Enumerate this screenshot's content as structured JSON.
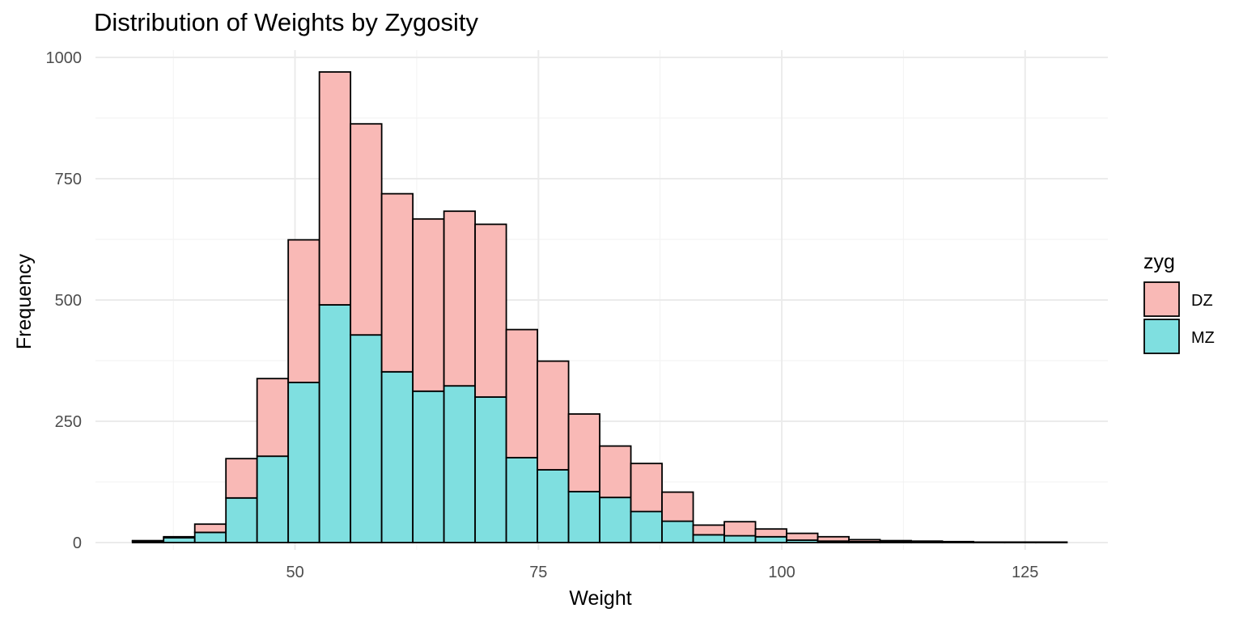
{
  "chart_data": {
    "type": "bar",
    "stacked": true,
    "title": "Distribution of Weights by Zygosity",
    "xlabel": "Weight",
    "ylabel": "Frequency",
    "xlim": [
      29.5,
      133.5
    ],
    "ylim": [
      -15,
      1015
    ],
    "x_ticks": [
      50,
      75,
      100,
      125
    ],
    "y_ticks": [
      0,
      250,
      500,
      750,
      1000
    ],
    "grid": true,
    "bin_width": 3.2,
    "bin_centers": [
      34.9,
      38.1,
      41.3,
      44.5,
      47.7,
      50.9,
      54.1,
      57.3,
      60.5,
      63.7,
      66.9,
      70.1,
      73.3,
      76.5,
      79.7,
      82.9,
      86.1,
      89.3,
      92.5,
      95.7,
      98.9,
      102.1,
      105.3,
      108.5,
      111.7,
      114.9,
      118.1,
      121.3,
      124.5,
      127.7
    ],
    "legend": {
      "title": "zyg",
      "position": "right"
    },
    "series": [
      {
        "name": "MZ",
        "color": "#7fdfe0",
        "values": [
          3,
          10,
          21,
          92,
          178,
          330,
          490,
          428,
          352,
          312,
          323,
          300,
          175,
          150,
          105,
          93,
          64,
          44,
          16,
          14,
          12,
          5,
          3,
          2,
          1,
          1,
          0,
          0,
          0,
          0
        ]
      },
      {
        "name": "DZ",
        "color": "#f9b9b6",
        "values": [
          1,
          2,
          17,
          81,
          160,
          294,
          480,
          435,
          367,
          355,
          360,
          356,
          264,
          224,
          160,
          106,
          99,
          60,
          20,
          29,
          16,
          14,
          9,
          4,
          3,
          2,
          2,
          1,
          1,
          1
        ]
      }
    ]
  }
}
